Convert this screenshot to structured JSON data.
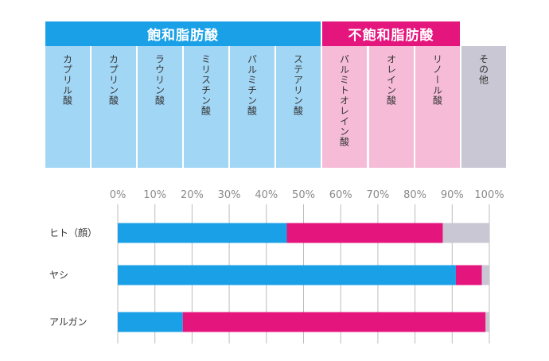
{
  "groups": [
    {
      "label": "飽和脂肪酸",
      "color": "#1aa0e6",
      "acids": [
        "カプリル酸",
        "カプリン酸",
        "ラウリン酸",
        "ミリスチン酸",
        "パルミチン酸",
        "ステアリン酸"
      ],
      "cell_color": "#a2d6f5"
    },
    {
      "label": "不飽和脂肪酸",
      "color": "#e5157e",
      "acids": [
        "パルミトオレイン酸",
        "オレイン酸",
        "リノール酸"
      ],
      "cell_color": "#f6bcd7"
    },
    {
      "label": "",
      "color": "#c9c7d3",
      "acids": [
        "その他"
      ],
      "cell_color": "#c9c7d3"
    }
  ],
  "chart_data": {
    "type": "bar",
    "orientation": "horizontal",
    "stacked": true,
    "categories": [
      "ヒト（顔）",
      "ヤシ",
      "アルガン"
    ],
    "series": [
      {
        "color": "#1aa0e6",
        "values": [
          45.5,
          91,
          17.5
        ]
      },
      {
        "color": "#e5157e",
        "values": [
          42,
          7,
          81.5
        ]
      },
      {
        "color": "#c9c7d3",
        "values": [
          12.5,
          2,
          1
        ]
      }
    ],
    "xlim": [
      0,
      100
    ],
    "x_ticks": [
      "0%",
      "10%",
      "20%",
      "30%",
      "40%",
      "50%",
      "60%",
      "70%",
      "80%",
      "90%",
      "100%"
    ],
    "grid": true
  }
}
